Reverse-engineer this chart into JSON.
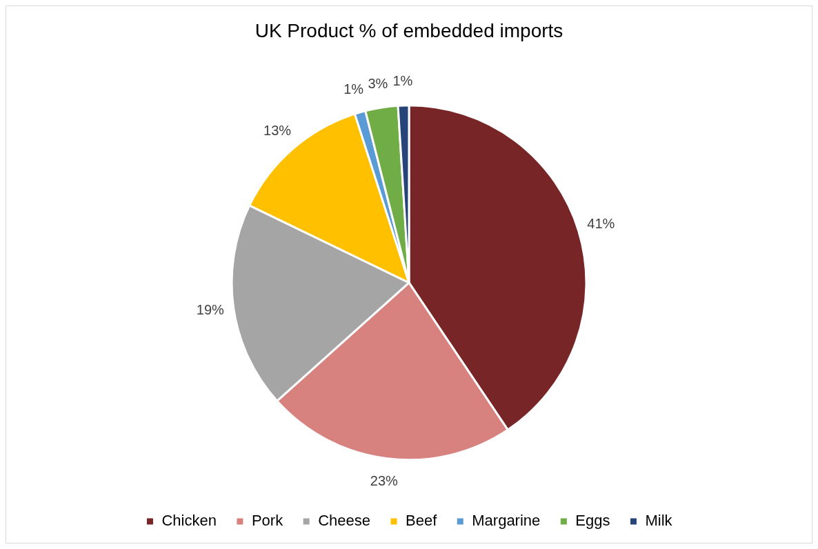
{
  "chart_data": {
    "type": "pie",
    "title": "UK Product % of embedded imports",
    "categories": [
      "Chicken",
      "Pork",
      "Cheese",
      "Beef",
      "Margarine",
      "Eggs",
      "Milk"
    ],
    "values": [
      41,
      23,
      19,
      13,
      1,
      3,
      1
    ],
    "value_labels": [
      "41%",
      "23%",
      "19%",
      "13%",
      "1%",
      "3%",
      "1%"
    ],
    "colors": [
      "#772526",
      "#d8827f",
      "#a5a5a5",
      "#ffc000",
      "#5b9bd5",
      "#70ad47",
      "#264478"
    ],
    "legend": "bottom"
  }
}
